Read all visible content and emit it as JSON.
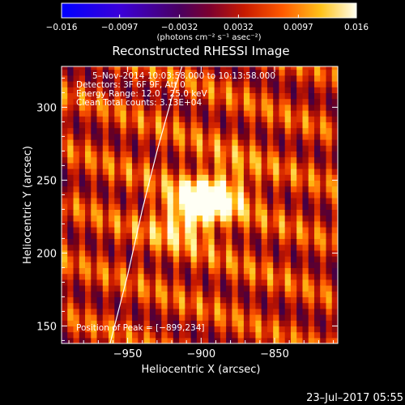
{
  "chart_data": {
    "type": "heatmap",
    "title": "Reconstructed RHESSI Image",
    "xlabel": "Heliocentric X (arcsec)",
    "ylabel": "Heliocentric Y (arcsec)",
    "xlim": [
      -995,
      -807
    ],
    "ylim": [
      138,
      328
    ],
    "x_ticks": [
      -950,
      -900,
      -850
    ],
    "y_ticks": [
      150,
      200,
      250,
      300
    ],
    "colorbar": {
      "min": -0.016,
      "max": 0.016,
      "ticks": [
        -0.016,
        -0.0097,
        -0.0032,
        0.0032,
        0.0097,
        0.016
      ],
      "tick_labels": [
        "−0.016",
        "−0.0097",
        "−0.0032",
        "0.0032",
        "0.0097",
        "0.016"
      ],
      "units_label": "(photons cm⁻² s⁻¹ asec⁻²)"
    },
    "info_lines": [
      "5–Nov–2014 10:03:58.000 to 10:13:58.000",
      "Detectors: 3F 6F 9F, Att 0",
      "Energy Range: 12.0 – 25.0 keV",
      "Clean    Total counts: 3.13E+04"
    ],
    "peak_label": "Position of Peak = [−899,234]",
    "peak": [
      -899,
      234
    ],
    "limb_points": [
      [
        -962,
        138
      ],
      [
        -950,
        185
      ],
      [
        -940,
        230
      ],
      [
        -930,
        270
      ],
      [
        -919,
        310
      ],
      [
        -913,
        328
      ]
    ]
  },
  "footer": {
    "date": "23–Jul–2017 05:55"
  }
}
